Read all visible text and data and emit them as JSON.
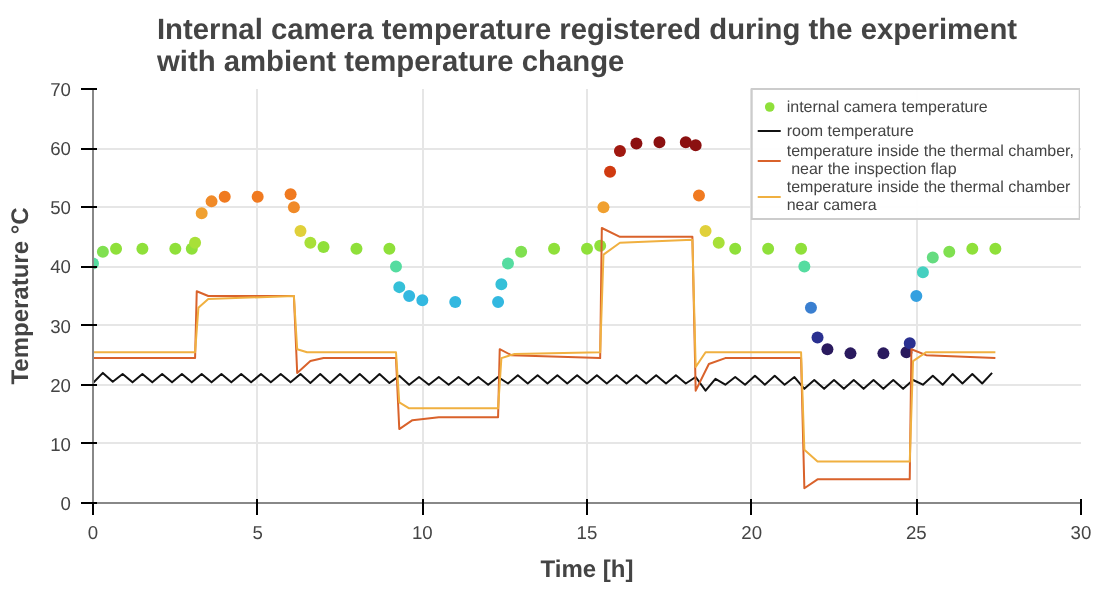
{
  "chart_data": {
    "type": "line",
    "title": "Internal camera temperature registered during the experiment\nwith ambient temperature change",
    "xlabel": "Time [h]",
    "ylabel": "Temperature °C",
    "xlim": [
      0,
      30
    ],
    "xticks": [
      0,
      5,
      10,
      15,
      20,
      25,
      30
    ],
    "ylim": [
      0,
      70
    ],
    "yticks": [
      0,
      10,
      20,
      30,
      40,
      50,
      60,
      70
    ],
    "grid": true,
    "legend": "top right",
    "series": [
      {
        "name": "internal camera temperature",
        "type": "scatter",
        "marker": "circle",
        "color": "#8fe03a",
        "x": [
          0,
          0.3,
          0.7,
          1.5,
          2.5,
          3.0,
          3.1,
          3.3,
          3.6,
          4.0,
          5.0,
          6.0,
          6.1,
          6.3,
          6.6,
          7.0,
          8.0,
          9.0,
          9.2,
          9.3,
          9.6,
          10.0,
          11.0,
          12.3,
          12.4,
          12.6,
          13.0,
          14.0,
          15.0,
          15.4,
          15.5,
          15.7,
          16.0,
          16.5,
          17.2,
          18.0,
          18.3,
          18.4,
          18.6,
          19.0,
          19.5,
          20.5,
          21.5,
          21.6,
          21.8,
          22.0,
          22.3,
          23.0,
          24.0,
          24.7,
          24.8,
          25.0,
          25.2,
          25.5,
          26.0,
          26.7,
          27.4
        ],
        "values": [
          40.5,
          42.5,
          43,
          43,
          43,
          43,
          44,
          49,
          51,
          51.8,
          51.8,
          52.2,
          50,
          46,
          44,
          43.3,
          43,
          43,
          40,
          36.5,
          35,
          34.3,
          34,
          34,
          37,
          40.5,
          42.5,
          43,
          43,
          43.5,
          50,
          56,
          59.5,
          60.8,
          61,
          61,
          60.5,
          52,
          46,
          44,
          43,
          43,
          43,
          40,
          33,
          28,
          26,
          25.3,
          25.3,
          25.5,
          27,
          35,
          39,
          41.5,
          42.5,
          43,
          43
        ],
        "colors": [
          "#55dca0",
          "#80e050",
          "#8fe03a",
          "#8fe03a",
          "#8fe03a",
          "#8fe03a",
          "#a8e038",
          "#f0a030",
          "#f08a28",
          "#f07a20",
          "#f07a20",
          "#f07a20",
          "#f08a28",
          "#e0d03a",
          "#a8e038",
          "#8fe03a",
          "#8fe03a",
          "#8fe03a",
          "#55dca0",
          "#35c0d8",
          "#33b8e0",
          "#33b8e0",
          "#33b8e0",
          "#33b8e0",
          "#35c0d8",
          "#55dca0",
          "#80e050",
          "#8fe03a",
          "#8fe03a",
          "#8fe03a",
          "#f0a030",
          "#d03a10",
          "#a01810",
          "#8b1010",
          "#8b1010",
          "#8b1010",
          "#8b1010",
          "#f07a20",
          "#e0d03a",
          "#a8e038",
          "#8fe03a",
          "#8fe03a",
          "#8fe03a",
          "#55dca0",
          "#3a7fd0",
          "#2a3090",
          "#2a1a5e",
          "#2a1a5e",
          "#2a1a5e",
          "#2a1a5e",
          "#2a3090",
          "#35a0e0",
          "#45d0c0",
          "#65dc80",
          "#80e050",
          "#8fe03a",
          "#8fe03a"
        ]
      },
      {
        "name": "room temperature",
        "color": "#111111",
        "x": [
          0,
          0.3,
          0.6,
          0.9,
          1.2,
          1.5,
          1.8,
          2.1,
          2.4,
          2.7,
          3.0,
          3.3,
          3.6,
          3.9,
          4.2,
          4.5,
          4.8,
          5.1,
          5.4,
          5.7,
          6.0,
          6.3,
          6.6,
          6.9,
          7.2,
          7.5,
          7.8,
          8.1,
          8.4,
          8.7,
          9.0,
          9.3,
          9.6,
          9.9,
          10.2,
          10.5,
          10.8,
          11.1,
          11.4,
          11.7,
          12.0,
          12.3,
          12.6,
          12.9,
          13.2,
          13.5,
          13.8,
          14.1,
          14.4,
          14.7,
          15.0,
          15.3,
          15.6,
          15.9,
          16.2,
          16.5,
          16.8,
          17.1,
          17.4,
          17.7,
          18.0,
          18.3,
          18.6,
          18.9,
          19.2,
          19.5,
          19.8,
          20.1,
          20.4,
          20.7,
          21.0,
          21.3,
          21.6,
          21.9,
          22.2,
          22.5,
          22.8,
          23.1,
          23.4,
          23.7,
          24.0,
          24.3,
          24.6,
          24.9,
          25.2,
          25.5,
          25.8,
          26.1,
          26.4,
          26.7,
          27.0,
          27.3
        ],
        "values": [
          20.3,
          22,
          20.5,
          21.8,
          20.4,
          21.8,
          20.4,
          21.8,
          20.4,
          21.8,
          20.4,
          21.8,
          20.4,
          21.8,
          20.4,
          21.8,
          20.4,
          21.8,
          20.4,
          21.8,
          20.4,
          21.8,
          20.3,
          21.8,
          20.3,
          21.8,
          20.3,
          21.8,
          20.3,
          21.8,
          20.3,
          21.5,
          20,
          21.3,
          20,
          21.3,
          20,
          21.3,
          20,
          21.3,
          20,
          21.3,
          20.2,
          21.6,
          20.2,
          21.6,
          20.2,
          21.6,
          20.2,
          21.6,
          20.2,
          21.6,
          20.2,
          21.6,
          20.2,
          21.6,
          20.2,
          21.6,
          20.2,
          21.6,
          20.2,
          21.3,
          19,
          21,
          20,
          21.3,
          20,
          21.5,
          20,
          21.5,
          20,
          21.3,
          19.3,
          20.8,
          19.3,
          20.8,
          19.3,
          20.8,
          19.3,
          20.8,
          19.3,
          20.8,
          19.3,
          20.8,
          20,
          21.5,
          20,
          21.8,
          20.2,
          21.8,
          20.2,
          22
        ]
      },
      {
        "name": "temperature inside the thermal chamber,\n near the inspection flap",
        "type": "line",
        "color": "#d9622b",
        "x": [
          0,
          3.1,
          3.15,
          3.5,
          6.1,
          6.2,
          6.6,
          7.0,
          9.2,
          9.3,
          9.7,
          10.5,
          12.3,
          12.35,
          12.7,
          15.4,
          15.45,
          16.0,
          18.2,
          18.3,
          18.7,
          19.2,
          21.5,
          21.6,
          22.0,
          24.8,
          24.85,
          25.3,
          27.4
        ],
        "values": [
          24.5,
          24.5,
          35.8,
          35,
          35,
          22,
          24,
          24.5,
          24.5,
          12.5,
          14,
          14.5,
          14.5,
          26,
          25,
          24.5,
          46.5,
          45,
          45,
          19,
          23.5,
          24.5,
          24.5,
          2.5,
          4,
          4,
          26,
          25,
          24.5
        ]
      },
      {
        "name": "temperature inside the thermal chamber\nnear camera",
        "type": "line",
        "color": "#f0b040",
        "x": [
          0,
          3.1,
          3.2,
          3.5,
          6.1,
          6.2,
          6.5,
          9.2,
          9.3,
          9.6,
          12.3,
          12.4,
          12.8,
          15.4,
          15.5,
          16.0,
          18.2,
          18.3,
          18.6,
          21.5,
          21.6,
          22.0,
          24.8,
          24.9,
          25.3,
          27.4
        ],
        "values": [
          25.5,
          25.5,
          33,
          34.5,
          35,
          26,
          25.5,
          25.5,
          17,
          16,
          16,
          24.5,
          25.2,
          25.5,
          42,
          44,
          44.5,
          23,
          25.5,
          25.5,
          9,
          7,
          7,
          24,
          25.5,
          25.5
        ]
      }
    ]
  }
}
